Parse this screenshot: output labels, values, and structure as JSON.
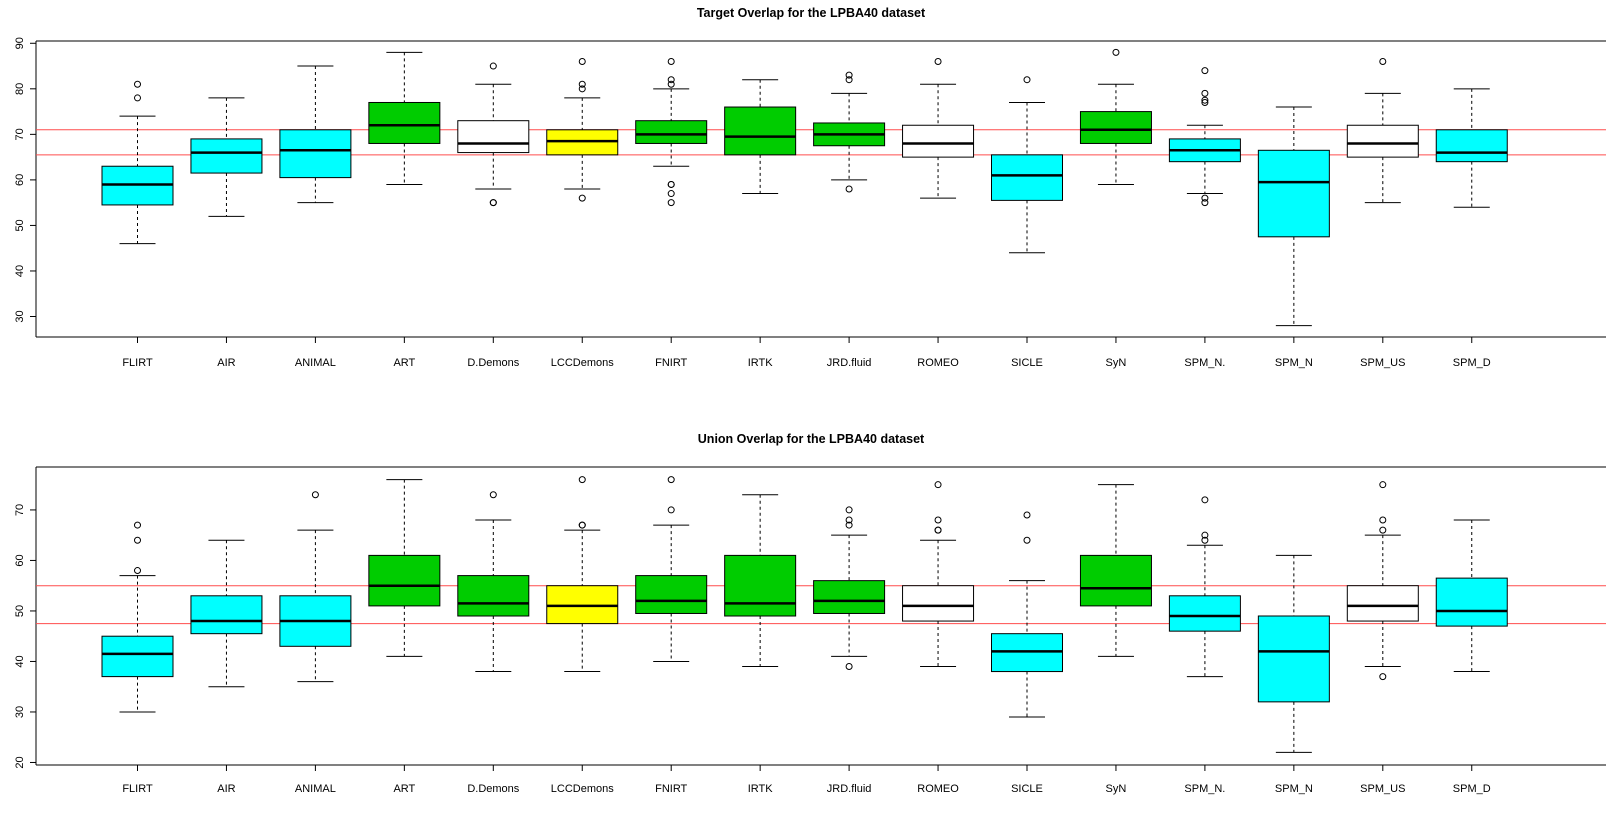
{
  "chart_data": [
    {
      "type": "boxplot",
      "title": "Target Overlap for the LPBA40 dataset",
      "categories": [
        "FLIRT",
        "AIR",
        "ANIMAL",
        "ART",
        "D.Demons",
        "LCCDemons",
        "FNIRT",
        "IRTK",
        "JRD.fluid",
        "ROMEO",
        "SICLE",
        "SyN",
        "SPM_N.",
        "SPM_N",
        "SPM_US",
        "SPM_D"
      ],
      "colors": [
        "#00ffff",
        "#00ffff",
        "#00ffff",
        "#00cc00",
        "#ffffff",
        "#ffff00",
        "#00cc00",
        "#00cc00",
        "#00cc00",
        "#ffffff",
        "#00ffff",
        "#00cc00",
        "#00ffff",
        "#00ffff",
        "#ffffff",
        "#00ffff"
      ],
      "boxes": [
        {
          "whisker_low": 46,
          "q1": 54.5,
          "median": 59,
          "q3": 63,
          "whisker_high": 74,
          "outliers": [
            78,
            81
          ]
        },
        {
          "whisker_low": 52,
          "q1": 61.5,
          "median": 66,
          "q3": 69,
          "whisker_high": 78,
          "outliers": []
        },
        {
          "whisker_low": 55,
          "q1": 60.5,
          "median": 66.5,
          "q3": 71,
          "whisker_high": 85,
          "outliers": []
        },
        {
          "whisker_low": 59,
          "q1": 68,
          "median": 72,
          "q3": 77,
          "whisker_high": 88,
          "outliers": []
        },
        {
          "whisker_low": 58,
          "q1": 66,
          "median": 68,
          "q3": 73,
          "whisker_high": 81,
          "outliers": [
            55,
            55,
            85
          ]
        },
        {
          "whisker_low": 58,
          "q1": 65.5,
          "median": 68.5,
          "q3": 71,
          "whisker_high": 78,
          "outliers": [
            56,
            80,
            81,
            86
          ]
        },
        {
          "whisker_low": 63,
          "q1": 68,
          "median": 70,
          "q3": 73,
          "whisker_high": 80,
          "outliers": [
            55,
            57,
            59,
            59,
            81,
            82,
            86
          ]
        },
        {
          "whisker_low": 57,
          "q1": 65.5,
          "median": 69.5,
          "q3": 76,
          "whisker_high": 82,
          "outliers": []
        },
        {
          "whisker_low": 60,
          "q1": 67.5,
          "median": 70,
          "q3": 72.5,
          "whisker_high": 79,
          "outliers": [
            58,
            82,
            83
          ]
        },
        {
          "whisker_low": 56,
          "q1": 65,
          "median": 68,
          "q3": 72,
          "whisker_high": 81,
          "outliers": [
            86
          ]
        },
        {
          "whisker_low": 44,
          "q1": 55.5,
          "median": 61,
          "q3": 65.5,
          "whisker_high": 77,
          "outliers": [
            82
          ]
        },
        {
          "whisker_low": 59,
          "q1": 68,
          "median": 71,
          "q3": 75,
          "whisker_high": 81,
          "outliers": [
            88
          ]
        },
        {
          "whisker_low": 57,
          "q1": 64,
          "median": 66.5,
          "q3": 69,
          "whisker_high": 72,
          "outliers": [
            55,
            56,
            77,
            77.5,
            79,
            84
          ]
        },
        {
          "whisker_low": 28,
          "q1": 47.5,
          "median": 59.5,
          "q3": 66.5,
          "whisker_high": 76,
          "outliers": []
        },
        {
          "whisker_low": 55,
          "q1": 65,
          "median": 68,
          "q3": 72,
          "whisker_high": 79,
          "outliers": [
            86
          ]
        },
        {
          "whisker_low": 54,
          "q1": 64,
          "median": 66,
          "q3": 71,
          "whisker_high": 80,
          "outliers": []
        }
      ],
      "reference_lines": [
        65.5,
        71
      ],
      "reference_line_color": "#ff4d4d",
      "ylim": [
        25.5,
        90.5
      ],
      "yticks": [
        30,
        40,
        50,
        60,
        70,
        80,
        90
      ],
      "xlabel": "",
      "ylabel": "",
      "grid": false
    },
    {
      "type": "boxplot",
      "title": "Union Overlap for the LPBA40 dataset",
      "categories": [
        "FLIRT",
        "AIR",
        "ANIMAL",
        "ART",
        "D.Demons",
        "LCCDemons",
        "FNIRT",
        "IRTK",
        "JRD.fluid",
        "ROMEO",
        "SICLE",
        "SyN",
        "SPM_N.",
        "SPM_N",
        "SPM_US",
        "SPM_D"
      ],
      "colors": [
        "#00ffff",
        "#00ffff",
        "#00ffff",
        "#00cc00",
        "#00cc00",
        "#ffff00",
        "#00cc00",
        "#00cc00",
        "#00cc00",
        "#ffffff",
        "#00ffff",
        "#00cc00",
        "#00ffff",
        "#00ffff",
        "#ffffff",
        "#00ffff"
      ],
      "boxes": [
        {
          "whisker_low": 30,
          "q1": 37,
          "median": 41.5,
          "q3": 45,
          "whisker_high": 57,
          "outliers": [
            58,
            64,
            67
          ]
        },
        {
          "whisker_low": 35,
          "q1": 45.5,
          "median": 48,
          "q3": 53,
          "whisker_high": 64,
          "outliers": []
        },
        {
          "whisker_low": 36,
          "q1": 43,
          "median": 48,
          "q3": 53,
          "whisker_high": 66,
          "outliers": [
            73
          ]
        },
        {
          "whisker_low": 41,
          "q1": 51,
          "median": 55,
          "q3": 61,
          "whisker_high": 76,
          "outliers": []
        },
        {
          "whisker_low": 38,
          "q1": 49,
          "median": 51.5,
          "q3": 57,
          "whisker_high": 68,
          "outliers": [
            73
          ]
        },
        {
          "whisker_low": 38,
          "q1": 47.5,
          "median": 51,
          "q3": 55,
          "whisker_high": 66,
          "outliers": [
            67,
            67,
            76
          ]
        },
        {
          "whisker_low": 40,
          "q1": 49.5,
          "median": 52,
          "q3": 57,
          "whisker_high": 67,
          "outliers": [
            70,
            76
          ]
        },
        {
          "whisker_low": 39,
          "q1": 49,
          "median": 51.5,
          "q3": 61,
          "whisker_high": 73,
          "outliers": []
        },
        {
          "whisker_low": 41,
          "q1": 49.5,
          "median": 52,
          "q3": 56,
          "whisker_high": 65,
          "outliers": [
            39,
            67,
            68,
            70
          ]
        },
        {
          "whisker_low": 39,
          "q1": 48,
          "median": 51,
          "q3": 55,
          "whisker_high": 64,
          "outliers": [
            66,
            66,
            68,
            75
          ]
        },
        {
          "whisker_low": 29,
          "q1": 38,
          "median": 42,
          "q3": 45.5,
          "whisker_high": 56,
          "outliers": [
            64,
            69
          ]
        },
        {
          "whisker_low": 41,
          "q1": 51,
          "median": 54.5,
          "q3": 61,
          "whisker_high": 75,
          "outliers": []
        },
        {
          "whisker_low": 37,
          "q1": 46,
          "median": 49,
          "q3": 53,
          "whisker_high": 63,
          "outliers": [
            64,
            65,
            72
          ]
        },
        {
          "whisker_low": 22,
          "q1": 32,
          "median": 42,
          "q3": 49,
          "whisker_high": 61,
          "outliers": []
        },
        {
          "whisker_low": 39,
          "q1": 48,
          "median": 51,
          "q3": 55,
          "whisker_high": 65,
          "outliers": [
            37,
            66,
            68,
            75
          ]
        },
        {
          "whisker_low": 38,
          "q1": 47,
          "median": 50,
          "q3": 56.5,
          "whisker_high": 68,
          "outliers": []
        }
      ],
      "reference_lines": [
        47.5,
        55
      ],
      "reference_line_color": "#ff4d4d",
      "ylim": [
        19.5,
        78.5
      ],
      "yticks": [
        20,
        30,
        40,
        50,
        60,
        70
      ],
      "xlabel": "",
      "ylabel": "",
      "grid": false
    }
  ]
}
